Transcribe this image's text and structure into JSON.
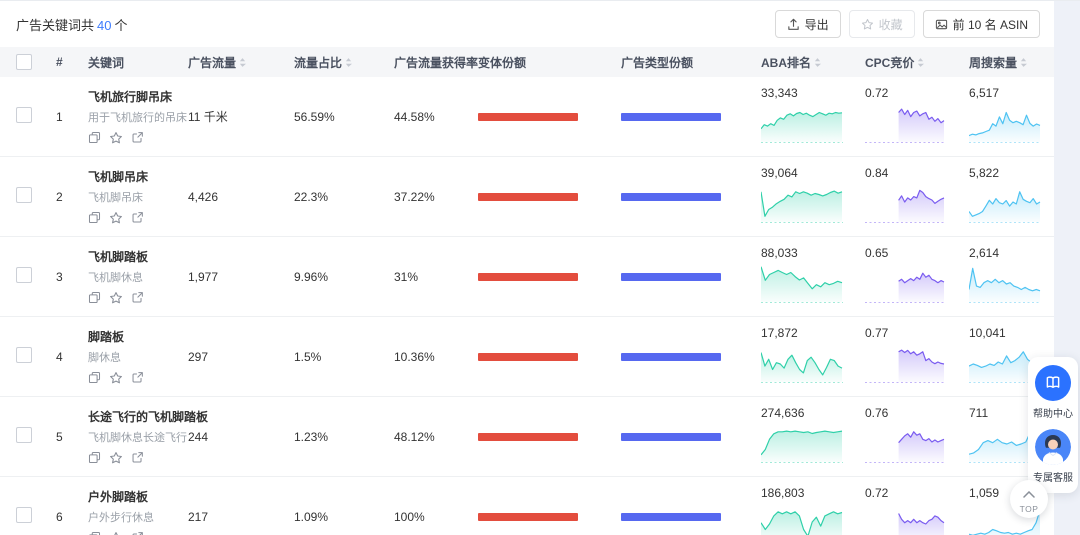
{
  "header": {
    "summary_prefix": "广告关键词共",
    "summary_count": "40",
    "summary_suffix": "个",
    "export_label": "导出",
    "favorite_label": "收藏",
    "top_asin_label": "前 10 名 ASIN"
  },
  "table": {
    "columns": [
      {
        "label": "#",
        "sortable": false
      },
      {
        "label": "关键词",
        "sortable": false
      },
      {
        "label": "广告流量",
        "sortable": true
      },
      {
        "label": "流量占比",
        "sortable": true
      },
      {
        "label": "广告流量获得率",
        "sortable": true
      },
      {
        "label": "变体份额",
        "sortable": false
      },
      {
        "label": "广告类型份额",
        "sortable": false
      },
      {
        "label": "ABA排名",
        "sortable": true
      },
      {
        "label": "CPC竞价",
        "sortable": true
      },
      {
        "label": "周搜索量",
        "sortable": true
      }
    ],
    "rows": [
      {
        "rank": "1",
        "keyword": "飞机旅行脚吊床",
        "subtitle": "用于飞机旅行的吊床",
        "ad_traffic": "11 千米",
        "traffic_share": "56.59%",
        "acquisition_rate": "44.58%",
        "variant_share_pct": 100,
        "ad_type_share_pct": 100,
        "aba_rank": "33,343",
        "cpc_bid": "0.72",
        "weekly_search": "6,517",
        "aba_trend": [
          30,
          42,
          38,
          45,
          40,
          55,
          62,
          58,
          70,
          74,
          68,
          75,
          78,
          72,
          76,
          70,
          66,
          72,
          78,
          74,
          70,
          76,
          74,
          78,
          76,
          77
        ],
        "cpc_trend": [
          78,
          88,
          72,
          84,
          66,
          78,
          82,
          68,
          74,
          78,
          58,
          64,
          52,
          60,
          48,
          54
        ],
        "weekly_trend": [
          10,
          14,
          12,
          16,
          18,
          22,
          26,
          45,
          38,
          65,
          45,
          78,
          55,
          48,
          52,
          48,
          42,
          70,
          46,
          38,
          44,
          40
        ]
      },
      {
        "rank": "2",
        "keyword": "飞机脚吊床",
        "subtitle": "飞机脚吊床",
        "ad_traffic": "4,426",
        "traffic_share": "22.3%",
        "acquisition_rate": "37.22%",
        "variant_share_pct": 100,
        "ad_type_share_pct": 100,
        "aba_rank": "39,064",
        "cpc_bid": "0.84",
        "weekly_search": "5,822",
        "aba_trend": [
          80,
          8,
          28,
          35,
          45,
          52,
          58,
          70,
          65,
          80,
          75,
          80,
          76,
          70,
          75,
          72,
          68,
          72,
          78,
          82,
          76,
          80
        ],
        "cpc_trend": [
          55,
          68,
          50,
          62,
          56,
          66,
          62,
          84,
          78,
          66,
          60,
          56,
          46,
          52,
          58,
          62
        ],
        "weekly_trend": [
          22,
          8,
          12,
          16,
          22,
          38,
          55,
          44,
          60,
          48,
          44,
          54,
          38,
          50,
          44,
          80,
          58,
          52,
          48,
          60,
          44,
          50
        ]
      },
      {
        "rank": "3",
        "keyword": "飞机脚踏板",
        "subtitle": "飞机脚休息",
        "ad_traffic": "1,977",
        "traffic_share": "9.96%",
        "acquisition_rate": "31%",
        "variant_share_pct": 100,
        "ad_type_share_pct": 100,
        "aba_rank": "88,033",
        "cpc_bid": "0.65",
        "weekly_search": "2,614",
        "aba_trend": [
          95,
          55,
          72,
          78,
          84,
          78,
          72,
          78,
          66,
          56,
          62,
          46,
          30,
          42,
          36,
          48,
          42,
          46,
          52,
          48
        ],
        "cpc_trend": [
          52,
          58,
          48,
          54,
          60,
          54,
          64,
          58,
          76,
          64,
          70,
          58,
          54,
          48,
          54,
          50
        ],
        "weekly_trend": [
          28,
          90,
          38,
          34,
          48,
          54,
          48,
          58,
          48,
          54,
          44,
          48,
          38,
          34,
          28,
          34,
          28,
          24,
          28,
          24
        ]
      },
      {
        "rank": "4",
        "keyword": "脚踏板",
        "subtitle": "脚休息",
        "ad_traffic": "297",
        "traffic_share": "1.5%",
        "acquisition_rate": "10.36%",
        "variant_share_pct": 100,
        "ad_type_share_pct": 100,
        "aba_rank": "17,872",
        "cpc_bid": "0.77",
        "weekly_search": "10,041",
        "aba_trend": [
          78,
          38,
          58,
          28,
          48,
          44,
          32,
          58,
          70,
          48,
          28,
          18,
          54,
          64,
          48,
          28,
          12,
          34,
          58,
          54,
          38,
          32
        ],
        "cpc_trend": [
          80,
          85,
          78,
          84,
          74,
          80,
          70,
          74,
          80,
          54,
          60,
          50,
          45,
          50,
          46,
          44
        ],
        "weekly_trend": [
          38,
          44,
          40,
          34,
          38,
          44,
          40,
          50,
          44,
          68,
          48,
          54,
          64,
          80,
          58,
          48,
          54,
          44
        ]
      },
      {
        "rank": "5",
        "keyword": "长途飞行的飞机脚踏板",
        "subtitle": "飞机脚休息长途飞行",
        "ad_traffic": "244",
        "traffic_share": "1.23%",
        "acquisition_rate": "48.12%",
        "variant_share_pct": 100,
        "ad_type_share_pct": 100,
        "aba_rank": "274,636",
        "cpc_bid": "0.76",
        "weekly_search": "711",
        "aba_trend": [
          12,
          28,
          58,
          74,
          80,
          80,
          82,
          80,
          82,
          80,
          78,
          80,
          75,
          78,
          80,
          82,
          80,
          78,
          80,
          82
        ],
        "cpc_trend": [
          48,
          58,
          68,
          74,
          64,
          80,
          70,
          74,
          58,
          54,
          60,
          50,
          56,
          50,
          54,
          58
        ],
        "weekly_trend": [
          14,
          18,
          28,
          48,
          54,
          48,
          58,
          48,
          44,
          50,
          40,
          44,
          50,
          80,
          55,
          60
        ]
      },
      {
        "rank": "6",
        "keyword": "户外脚踏板",
        "subtitle": "户外步行休息",
        "ad_traffic": "217",
        "traffic_share": "1.09%",
        "acquisition_rate": "100%",
        "variant_share_pct": 100,
        "ad_type_share_pct": 100,
        "aba_rank": "186,803",
        "cpc_bid": "0.72",
        "weekly_search": "1,059",
        "aba_trend": [
          48,
          28,
          44,
          68,
          80,
          74,
          80,
          74,
          80,
          68,
          28,
          8,
          50,
          64,
          38,
          68,
          74,
          80,
          74,
          78
        ],
        "cpc_trend": [
          75,
          58,
          48,
          54,
          48,
          58,
          48,
          54,
          48,
          44,
          54,
          58,
          68,
          64,
          54,
          48
        ],
        "weekly_trend": [
          14,
          11,
          14,
          17,
          14,
          19,
          28,
          24,
          19,
          17,
          19,
          14,
          17,
          14,
          19,
          24,
          28,
          48,
          85
        ]
      }
    ]
  },
  "floating": {
    "help_label": "帮助中心",
    "service_label": "专属客服",
    "top_label": "TOP"
  },
  "colors": {
    "link_blue": "#3d7bfd",
    "variant_bar_red": "#e34d3e",
    "ad_type_bar_blue": "#5668f0",
    "aba_spark_teal": "#2fd0a9",
    "cpc_spark_purple": "#7a5cf0",
    "weekly_spark_cyan": "#4ec3f2"
  }
}
